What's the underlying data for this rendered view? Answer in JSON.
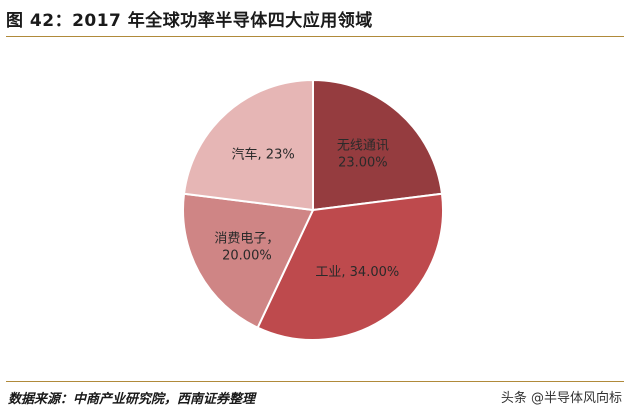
{
  "figure": {
    "title": "图 42：2017 年全球功率半导体四大应用领域",
    "source": "数据来源：中商产业研究院，西南证券整理",
    "watermark": "头条 @半导体风向标"
  },
  "chart_data": {
    "type": "pie",
    "title": "",
    "slices": [
      {
        "label": "无线通讯",
        "value": 23.0,
        "value_text": "23.00%",
        "color": "#953c3f"
      },
      {
        "label": "工业",
        "value": 34.0,
        "value_text": "34.00%",
        "color": "#be4a4d"
      },
      {
        "label": "消费电子",
        "value": 20.0,
        "value_text": "20.00%",
        "color": "#cf8585"
      },
      {
        "label": "汽车",
        "value": 23.0,
        "value_text": "23%",
        "color": "#e6b6b5"
      }
    ],
    "start": "12 o'clock",
    "direction": "clockwise",
    "legend": "none",
    "colors": {
      "rule": "#b08a3a",
      "edge": "#ffffff"
    }
  }
}
